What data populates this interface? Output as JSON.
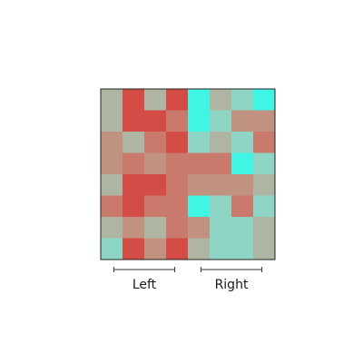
{
  "chart_data": {
    "type": "heatmap",
    "rows": 8,
    "cols": 8,
    "title": "",
    "xlabel": "",
    "ylabel": "",
    "legend": "none",
    "palette": {
      "R": "#d44c46",
      "P": "#c97a6d",
      "S": "#c0927f",
      "G": "#aeb6a3",
      "M": "#8fd5c6",
      "C": "#3ef6e3"
    },
    "cells": [
      [
        "G",
        "R",
        "G",
        "R",
        "C",
        "G",
        "M",
        "C"
      ],
      [
        "G",
        "R",
        "R",
        "P",
        "C",
        "M",
        "S",
        "S"
      ],
      [
        "S",
        "G",
        "P",
        "R",
        "M",
        "G",
        "M",
        "P"
      ],
      [
        "S",
        "P",
        "S",
        "P",
        "P",
        "P",
        "C",
        "M"
      ],
      [
        "G",
        "R",
        "R",
        "P",
        "S",
        "S",
        "S",
        "G"
      ],
      [
        "P",
        "R",
        "P",
        "P",
        "C",
        "M",
        "P",
        "M"
      ],
      [
        "G",
        "S",
        "G",
        "P",
        "S",
        "M",
        "M",
        "G"
      ],
      [
        "M",
        "R",
        "S",
        "R",
        "G",
        "M",
        "M",
        "G"
      ]
    ],
    "groups": [
      {
        "label": "Left",
        "col_start": 0,
        "col_end": 3
      },
      {
        "label": "Right",
        "col_start": 4,
        "col_end": 7
      }
    ]
  }
}
